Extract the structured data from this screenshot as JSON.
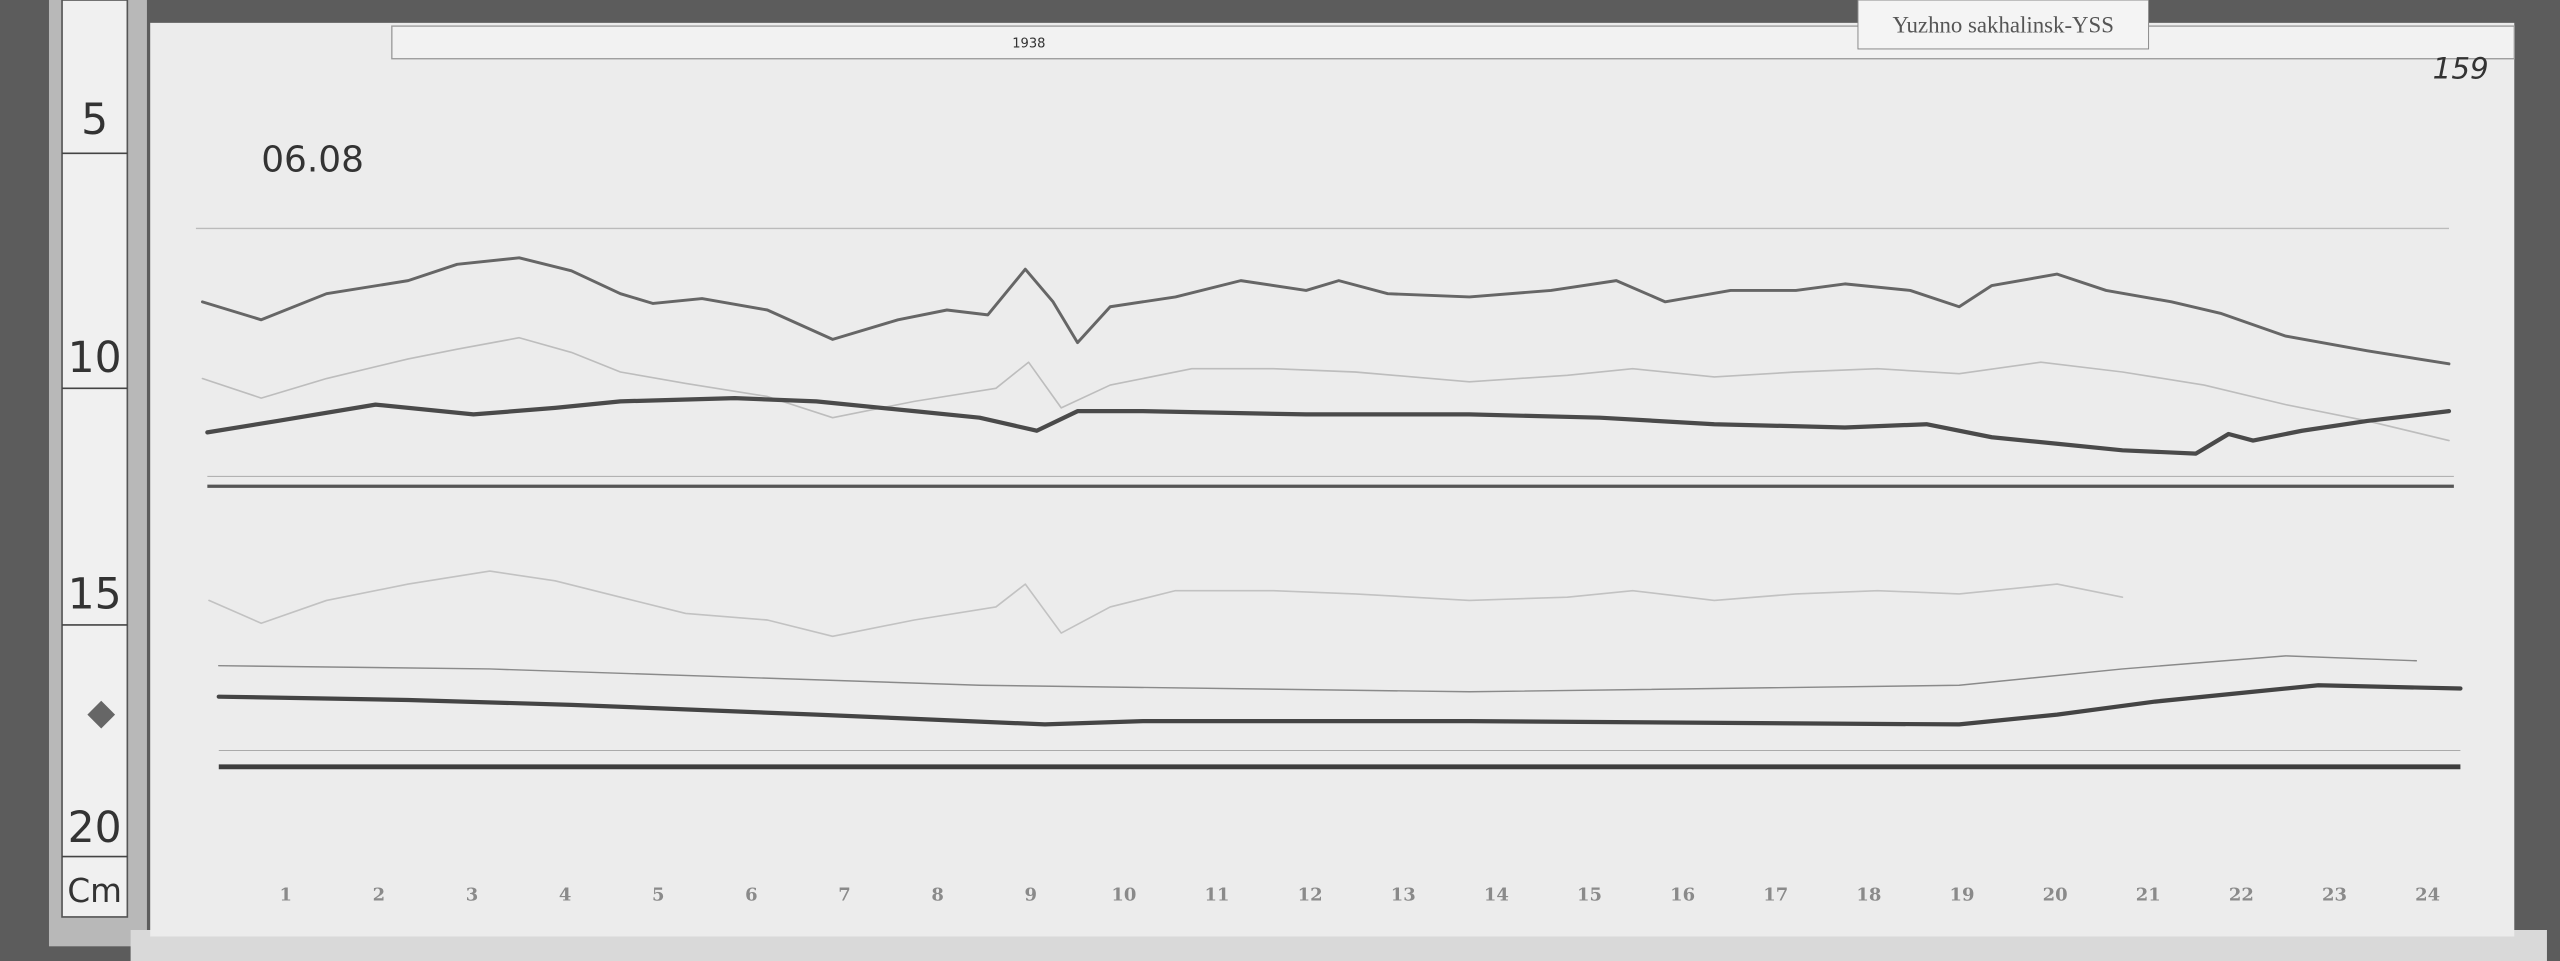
{
  "station_label": "Yuzhno sakhalinsk-YSS",
  "sheet_number": "159",
  "date": "06.08",
  "header_note": "1938",
  "ruler": {
    "ticks": [
      "5",
      "10",
      "15",
      "20"
    ],
    "unit": "Cm"
  },
  "hours": [
    "1",
    "2",
    "3",
    "4",
    "5",
    "6",
    "7",
    "8",
    "9",
    "10",
    "11",
    "12",
    "13",
    "14",
    "15",
    "16",
    "17",
    "18",
    "19",
    "20",
    "21",
    "22",
    "23",
    "24"
  ],
  "colors": {
    "background": "#5a5a5a",
    "paper": "#ececec",
    "trace_dark": "#555555",
    "trace_light": "#b8b8b8"
  }
}
